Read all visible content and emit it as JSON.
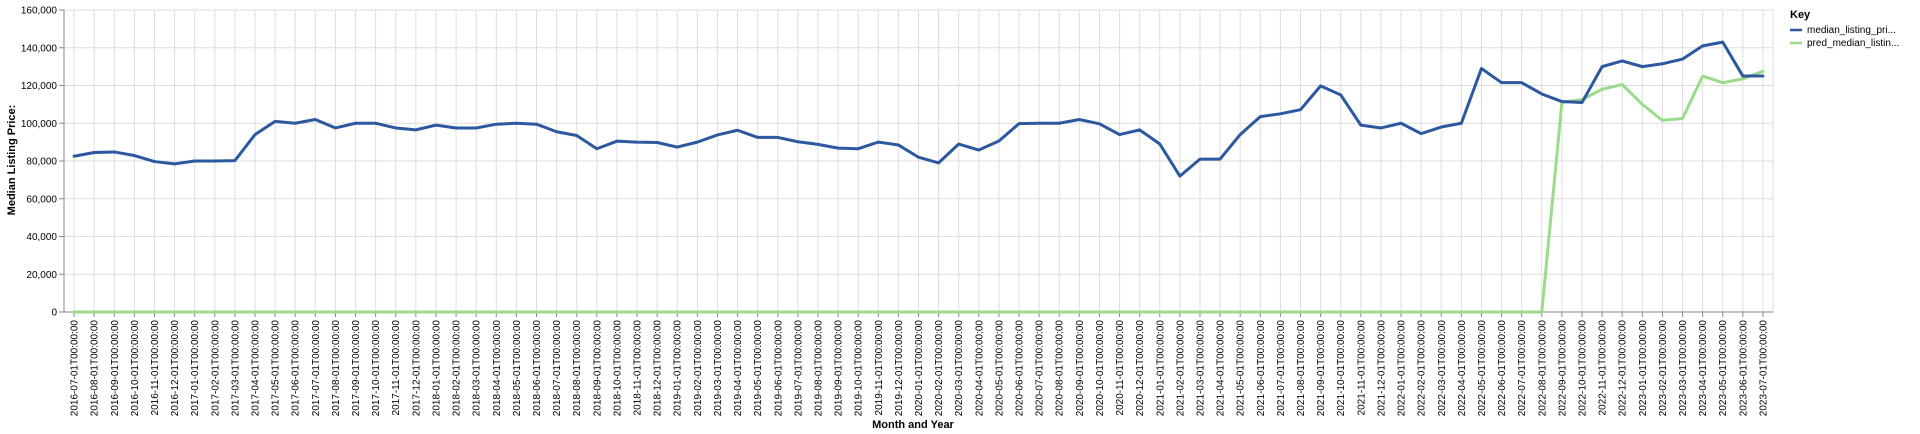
{
  "chart_data": {
    "type": "line",
    "title": "",
    "xlabel": "Month and Year",
    "ylabel": "Median Listing Price:",
    "ylim": [
      0,
      160000
    ],
    "yticks": [
      "0",
      "20,000",
      "40,000",
      "60,000",
      "80,000",
      "100,000",
      "120,000",
      "140,000",
      "160,000"
    ],
    "ytick_values": [
      0,
      20000,
      40000,
      60000,
      80000,
      100000,
      120000,
      140000,
      160000
    ],
    "grid": true,
    "legend": {
      "title": "Key",
      "position": "top-right",
      "entries": [
        "median_listing_pri...",
        "pred_median_listin..."
      ]
    },
    "x": [
      "2016-07-01T00:00:00",
      "2016-08-01T00:00:00",
      "2016-09-01T00:00:00",
      "2016-10-01T00:00:00",
      "2016-11-01T00:00:00",
      "2016-12-01T00:00:00",
      "2017-01-01T00:00:00",
      "2017-02-01T00:00:00",
      "2017-03-01T00:00:00",
      "2017-04-01T00:00:00",
      "2017-05-01T00:00:00",
      "2017-06-01T00:00:00",
      "2017-07-01T00:00:00",
      "2017-08-01T00:00:00",
      "2017-09-01T00:00:00",
      "2017-10-01T00:00:00",
      "2017-11-01T00:00:00",
      "2017-12-01T00:00:00",
      "2018-01-01T00:00:00",
      "2018-02-01T00:00:00",
      "2018-03-01T00:00:00",
      "2018-04-01T00:00:00",
      "2018-05-01T00:00:00",
      "2018-06-01T00:00:00",
      "2018-07-01T00:00:00",
      "2018-08-01T00:00:00",
      "2018-09-01T00:00:00",
      "2018-10-01T00:00:00",
      "2018-11-01T00:00:00",
      "2018-12-01T00:00:00",
      "2019-01-01T00:00:00",
      "2019-02-01T00:00:00",
      "2019-03-01T00:00:00",
      "2019-04-01T00:00:00",
      "2019-05-01T00:00:00",
      "2019-06-01T00:00:00",
      "2019-07-01T00:00:00",
      "2019-08-01T00:00:00",
      "2019-09-01T00:00:00",
      "2019-10-01T00:00:00",
      "2019-11-01T00:00:00",
      "2019-12-01T00:00:00",
      "2020-01-01T00:00:00",
      "2020-02-01T00:00:00",
      "2020-03-01T00:00:00",
      "2020-04-01T00:00:00",
      "2020-05-01T00:00:00",
      "2020-06-01T00:00:00",
      "2020-07-01T00:00:00",
      "2020-08-01T00:00:00",
      "2020-09-01T00:00:00",
      "2020-10-01T00:00:00",
      "2020-11-01T00:00:00",
      "2020-12-01T00:00:00",
      "2021-01-01T00:00:00",
      "2021-02-01T00:00:00",
      "2021-03-01T00:00:00",
      "2021-04-01T00:00:00",
      "2021-05-01T00:00:00",
      "2021-06-01T00:00:00",
      "2021-07-01T00:00:00",
      "2021-08-01T00:00:00",
      "2021-09-01T00:00:00",
      "2021-10-01T00:00:00",
      "2021-11-01T00:00:00",
      "2021-12-01T00:00:00",
      "2022-01-01T00:00:00",
      "2022-02-01T00:00:00",
      "2022-03-01T00:00:00",
      "2022-04-01T00:00:00",
      "2022-05-01T00:00:00",
      "2022-06-01T00:00:00",
      "2022-07-01T00:00:00",
      "2022-08-01T00:00:00",
      "2022-09-01T00:00:00",
      "2022-10-01T00:00:00",
      "2022-11-01T00:00:00",
      "2022-12-01T00:00:00",
      "2023-01-01T00:00:00",
      "2023-02-01T00:00:00",
      "2023-03-01T00:00:00",
      "2023-04-01T00:00:00",
      "2023-05-01T00:00:00",
      "2023-06-01T00:00:00",
      "2023-07-01T00:00:00"
    ],
    "series": [
      {
        "name": "median_listing_pri...",
        "color": "#2c58a0",
        "values": [
          82500,
          84500,
          84800,
          82900,
          79700,
          78500,
          80000,
          80000,
          80200,
          94000,
          101000,
          100000,
          102000,
          97500,
          100000,
          100000,
          97500,
          96500,
          99000,
          97500,
          97500,
          99500,
          100000,
          99500,
          95500,
          93500,
          86500,
          90500,
          90000,
          89800,
          87400,
          90000,
          93800,
          96300,
          92500,
          92500,
          90200,
          88800,
          86800,
          86500,
          90000,
          88500,
          82000,
          79000,
          89000,
          85800,
          90600,
          99800,
          100000,
          100000,
          102000,
          99700,
          94000,
          96500,
          89000,
          72000,
          81000,
          81000,
          94000,
          103500,
          105000,
          107200,
          119800,
          115000,
          99000,
          97500,
          100000,
          94500,
          98000,
          100000,
          129000,
          121500,
          121500,
          115500,
          111500,
          111000,
          130000,
          133000,
          130000,
          131500,
          134000,
          141000,
          143000,
          125000,
          125000
        ]
      },
      {
        "name": "pred_median_listin...",
        "color": "#9bdb8c",
        "values": [
          0,
          0,
          0,
          0,
          0,
          0,
          0,
          0,
          0,
          0,
          0,
          0,
          0,
          0,
          0,
          0,
          0,
          0,
          0,
          0,
          0,
          0,
          0,
          0,
          0,
          0,
          0,
          0,
          0,
          0,
          0,
          0,
          0,
          0,
          0,
          0,
          0,
          0,
          0,
          0,
          0,
          0,
          0,
          0,
          0,
          0,
          0,
          0,
          0,
          0,
          0,
          0,
          0,
          0,
          0,
          0,
          0,
          0,
          0,
          0,
          0,
          0,
          0,
          0,
          0,
          0,
          0,
          0,
          0,
          0,
          0,
          0,
          0,
          0,
          111000,
          112500,
          118000,
          120500,
          110000,
          101500,
          102500,
          125000,
          121500,
          123500,
          127500
        ]
      }
    ]
  }
}
